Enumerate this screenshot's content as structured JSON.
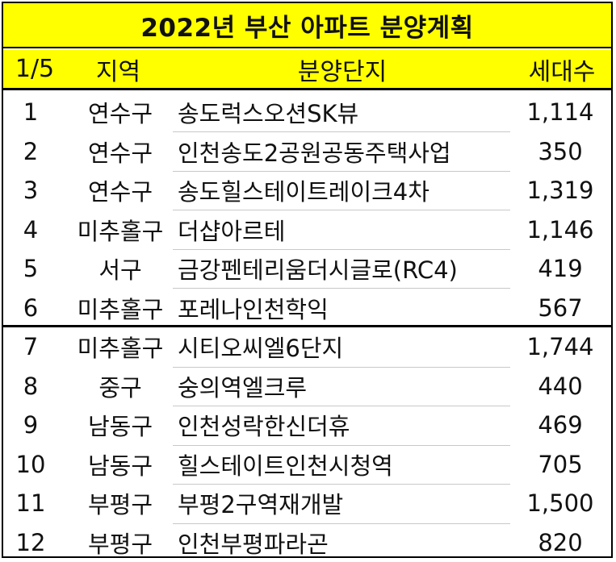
{
  "title": "2022년 부산 아파트 분양계획",
  "header": {
    "no": "1/5",
    "region": "지역",
    "complex": "분양단지",
    "units": "세대수"
  },
  "rows": [
    {
      "no": "1",
      "region": "연수구",
      "complex": "송도럭스오션SK뷰",
      "units": "1,114"
    },
    {
      "no": "2",
      "region": "연수구",
      "complex": "인천송도2공원공동주택사업",
      "units": "350"
    },
    {
      "no": "3",
      "region": "연수구",
      "complex": "송도힐스테이트레이크4차",
      "units": "1,319"
    },
    {
      "no": "4",
      "region": "미추홀구",
      "complex": "더샵아르테",
      "units": "1,146"
    },
    {
      "no": "5",
      "region": "서구",
      "complex": "금강펜테리움더시글로(RC4)",
      "units": "419"
    },
    {
      "no": "6",
      "region": "미추홀구",
      "complex": "포레나인천학익",
      "units": "567"
    },
    {
      "no": "7",
      "region": "미추홀구",
      "complex": "시티오씨엘6단지",
      "units": "1,744"
    },
    {
      "no": "8",
      "region": "중구",
      "complex": "숭의역엘크루",
      "units": "440"
    },
    {
      "no": "9",
      "region": "남동구",
      "complex": "인천성락한신더휴",
      "units": "469"
    },
    {
      "no": "10",
      "region": "남동구",
      "complex": "힐스테이트인천시청역",
      "units": "705"
    },
    {
      "no": "11",
      "region": "부평구",
      "complex": "부평2구역재개발",
      "units": "1,500"
    },
    {
      "no": "12",
      "region": "부평구",
      "complex": "인천부평파라곤",
      "units": "820"
    }
  ],
  "colors": {
    "header_bg": "#ffff00",
    "border": "#000000",
    "inner_rule": "#c8c8c8"
  }
}
